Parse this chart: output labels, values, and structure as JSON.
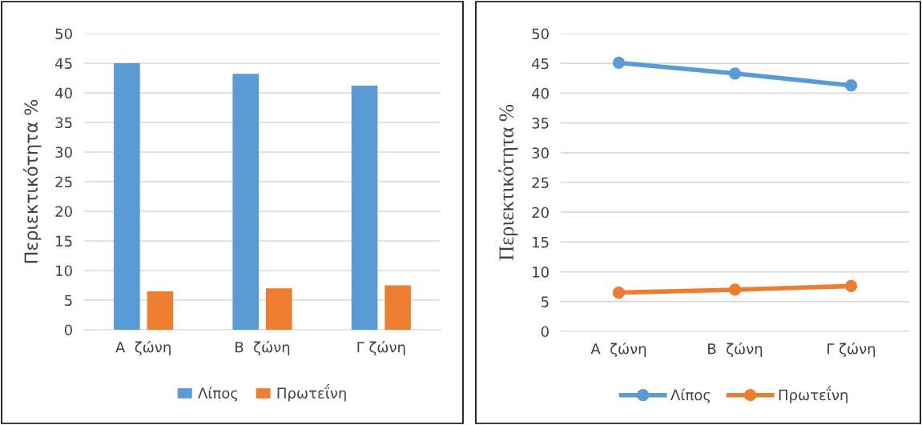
{
  "chart_data": [
    {
      "type": "bar",
      "ylabel": "Περιεκτικότητα %",
      "categories": [
        "Α  ζώνη",
        "Β  ζώνη",
        "Γ ζώνη"
      ],
      "series": [
        {
          "name": "Λίπος",
          "color": "#5b9bd5",
          "values": [
            45.0,
            43.2,
            41.2
          ]
        },
        {
          "name": "Πρωτεΐνη",
          "color": "#ed7d31",
          "values": [
            6.5,
            7.0,
            7.5
          ]
        }
      ],
      "ylim": [
        0,
        50
      ],
      "yticks": [
        0,
        5,
        10,
        15,
        20,
        25,
        30,
        35,
        40,
        45,
        50
      ],
      "grid": "y",
      "legend": "bottom"
    },
    {
      "type": "line",
      "ylabel": "Περιεκτικότητα %",
      "categories": [
        "Α  ζώνη",
        "Β  ζώνη",
        "Γ ζώνη"
      ],
      "series": [
        {
          "name": "Λίπος",
          "color": "#5b9bd5",
          "values": [
            45.1,
            43.3,
            41.3
          ]
        },
        {
          "name": "Πρωτεΐνη",
          "color": "#ed7d31",
          "values": [
            6.5,
            7.0,
            7.6
          ]
        }
      ],
      "ylim": [
        0,
        50
      ],
      "yticks": [
        0,
        5,
        10,
        15,
        20,
        25,
        30,
        35,
        40,
        45,
        50
      ],
      "grid": "y",
      "legend": "bottom",
      "marker": "circle",
      "line_style": "solid"
    }
  ]
}
